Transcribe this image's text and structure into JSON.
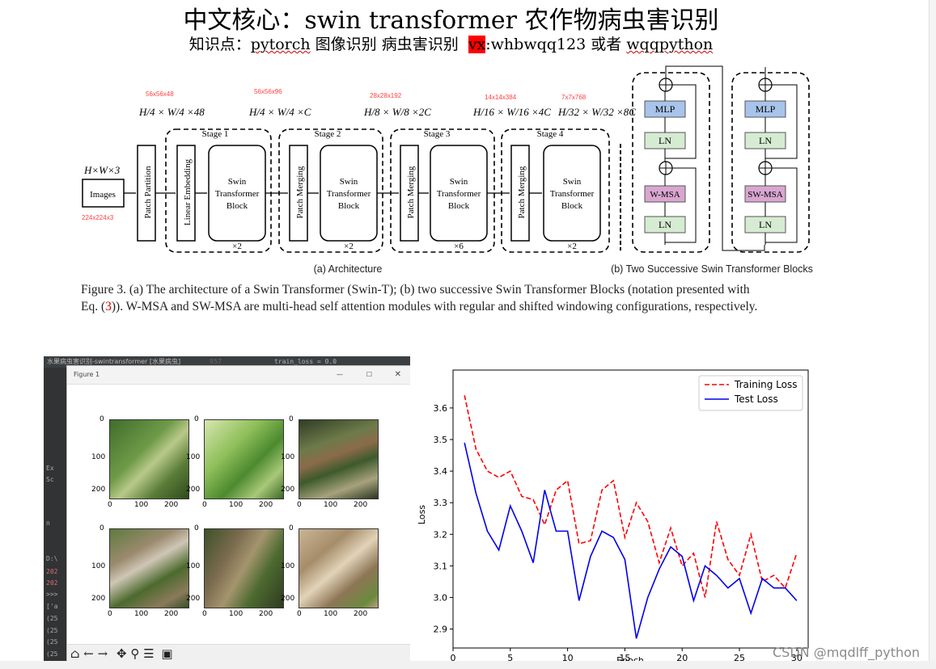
{
  "title": "中文核心：swin transformer 农作物病虫害识别",
  "subtitle": {
    "prefix": "知识点：",
    "pytorch": "pytorch",
    "middle": " 图像识别 病虫害识别 ",
    "vx": "vx",
    "colon_id": ":whbwqq123 或者 ",
    "wqqpython": "wqqpython"
  },
  "figure": {
    "annotations_red": [
      "56x56x48",
      "56x56x96",
      "28x28x192",
      "14x14x384",
      "7x7x768",
      "224x224x3"
    ],
    "dims": {
      "d1": "H/4 × W/4 ×48",
      "d2": "H/4 × W/4 ×C",
      "d3": "H/8 × W/8 ×2C",
      "d4": "H/16 × W/16 ×4C",
      "d5": "H/32 × W/32 ×8C"
    },
    "input_dim": "H×W×3",
    "images_label": "Images",
    "patch_partition": "Patch Partition",
    "linear_embedding": "Linear Embedding",
    "patch_merging": "Patch Merging",
    "swin_block": [
      "Swin",
      "Transformer",
      "Block"
    ],
    "stages": [
      "Stage 1",
      "Stage 2",
      "Stage 3",
      "Stage 4"
    ],
    "repeats": [
      "×2",
      "×2",
      "×6",
      "×2"
    ],
    "arch_caption": "(a) Architecture",
    "blocks_caption": "(b) Two Successive Swin Transformer Blocks",
    "mlp": "MLP",
    "ln": "LN",
    "wmsa": "W-MSA",
    "swmsa": "SW-MSA"
  },
  "caption": {
    "line1": "Figure 3. (a) The architecture of a Swin Transformer (Swin-T); (b) two successive Swin Transformer Blocks (notation presented with",
    "line2a": "Eq. (",
    "ref": "3",
    "line2b": ")). W-MSA and SW-MSA are multi-head self attention modules with regular and shifted windowing configurations, respectively."
  },
  "ide": {
    "title": "水果病虫害识别-swintransformer [水果病虫]",
    "code": "train_loss = 0.0",
    "line_no": "857",
    "side_items": [
      "Ex",
      "Sc",
      "n",
      "D:\\",
      "202",
      "202",
      ">>>",
      "['a",
      "(25",
      "(25",
      "(25",
      "(25"
    ],
    "figure_title": "Figure 1",
    "toolbar_icons": [
      "home-icon",
      "back-icon",
      "forward-icon",
      "pan-icon",
      "zoom-icon",
      "configure-icon",
      "save-icon"
    ],
    "ticks_x": [
      "0",
      "100",
      "200"
    ],
    "ticks_y": [
      "0",
      "100",
      "200"
    ]
  },
  "chart_data": {
    "type": "line",
    "xlabel": "Epoch",
    "ylabel": "Loss",
    "xlim": [
      0,
      31
    ],
    "ylim": [
      2.84,
      3.72
    ],
    "xticks": [
      0,
      5,
      10,
      15,
      20,
      25,
      30
    ],
    "yticks": [
      2.9,
      3.0,
      3.1,
      3.2,
      3.3,
      3.4,
      3.5,
      3.6
    ],
    "legend_position": "top-right",
    "x": [
      1,
      2,
      3,
      4,
      5,
      6,
      7,
      8,
      9,
      10,
      11,
      12,
      13,
      14,
      15,
      16,
      17,
      18,
      19,
      20,
      21,
      22,
      23,
      24,
      25,
      26,
      27,
      28,
      29,
      30
    ],
    "series": [
      {
        "name": "Training Loss",
        "color": "#ff0000",
        "dash": true,
        "values": [
          3.64,
          3.47,
          3.4,
          3.38,
          3.4,
          3.32,
          3.31,
          3.23,
          3.34,
          3.37,
          3.17,
          3.18,
          3.34,
          3.37,
          3.19,
          3.3,
          3.24,
          3.11,
          3.22,
          3.1,
          3.14,
          3.0,
          3.24,
          3.12,
          3.07,
          3.2,
          3.05,
          3.07,
          3.03,
          3.14
        ]
      },
      {
        "name": "Test Loss",
        "color": "#0000ee",
        "dash": false,
        "values": [
          3.49,
          3.33,
          3.21,
          3.15,
          3.29,
          3.21,
          3.11,
          3.34,
          3.21,
          3.21,
          2.99,
          3.13,
          3.21,
          3.19,
          3.12,
          2.87,
          3.0,
          3.09,
          3.16,
          3.13,
          2.99,
          3.1,
          3.07,
          3.03,
          3.06,
          2.95,
          3.06,
          3.03,
          3.03,
          2.99
        ]
      }
    ]
  },
  "watermark": "CSDN @mqdlff_python"
}
